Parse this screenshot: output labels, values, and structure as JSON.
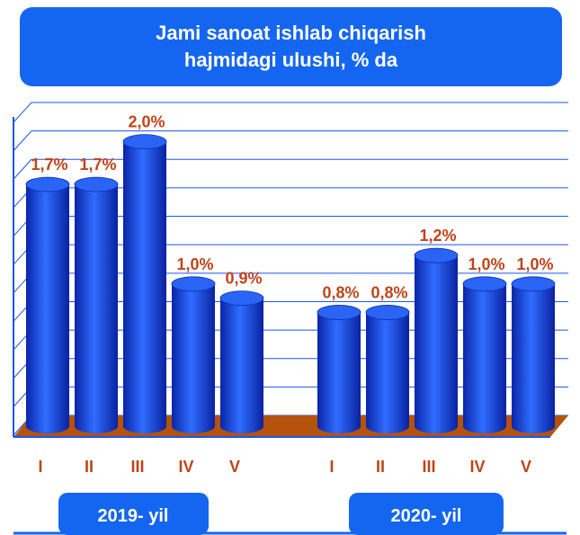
{
  "chart_data": {
    "type": "bar",
    "title": "Jami sanoat ishlab chiqarish hajmidagi ulushi, % da",
    "categories": [
      "I",
      "II",
      "III",
      "IV",
      "V",
      null,
      "I",
      "II",
      "III",
      "IV",
      "V"
    ],
    "values": [
      1.7,
      1.7,
      2.0,
      1.0,
      0.9,
      null,
      0.8,
      0.8,
      1.2,
      1.0,
      1.0
    ],
    "value_labels": [
      "1,7%",
      "1,7%",
      "2,0%",
      "1,0%",
      "0,9%",
      null,
      "0,8%",
      "0,8%",
      "1,2%",
      "1,0%",
      "1,0%"
    ],
    "group_labels": [
      "2019- yil",
      "2020- yil"
    ],
    "color": "#1a55f0",
    "ylim": [
      0,
      2.2
    ],
    "yticks": [
      0,
      0.2,
      0.4,
      0.6,
      0.8,
      1.0,
      1.2,
      1.4,
      1.6,
      1.8,
      2.0,
      2.2
    ],
    "grid": true
  }
}
